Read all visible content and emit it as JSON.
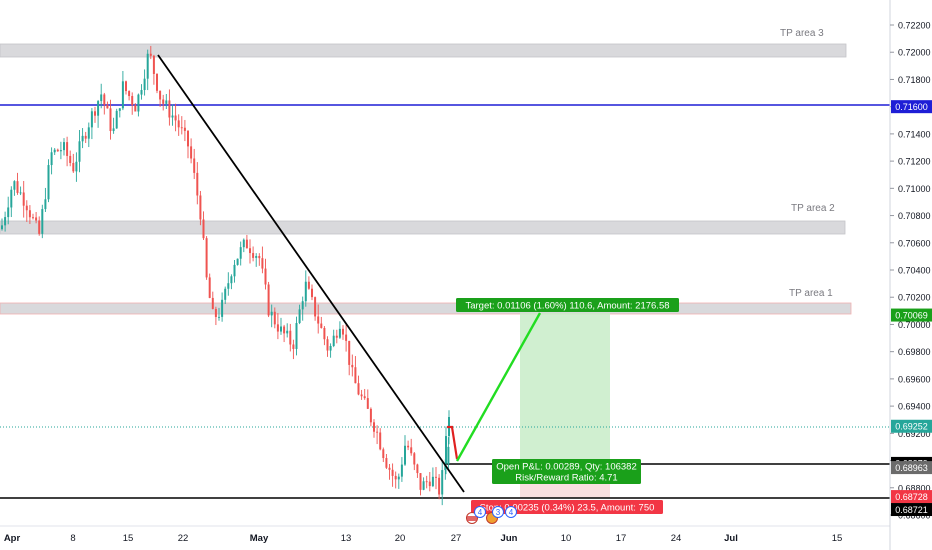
{
  "chart_data": {
    "type": "candlestick",
    "x_tick_labels": [
      "Apr",
      "8",
      "15",
      "22",
      "May",
      "13",
      "20",
      "27",
      "Jun",
      "10",
      "17",
      "24",
      "Jul",
      "15"
    ],
    "y_tick_labels": [
      "0.72200",
      "0.72000",
      "0.71800",
      "0.71600",
      "0.71400",
      "0.71200",
      "0.71000",
      "0.70800",
      "0.70600",
      "0.70400",
      "0.70200",
      "0.70000",
      "0.69800",
      "0.69600",
      "0.69400",
      "0.69200",
      "0.69000",
      "0.68800",
      "0.68600"
    ],
    "ylim": [
      0.6858,
      0.7232
    ],
    "grid": false,
    "price_lines": [
      {
        "value": 0.716,
        "label": "0.71600",
        "color": "#1e1ed6"
      },
      {
        "value": 0.69252,
        "label": "0.69252",
        "color": "#26a69a"
      },
      {
        "value": 0.68979,
        "label": "0.68979",
        "color": "#000000"
      },
      {
        "value": 0.68728,
        "label": "0.68728",
        "color": "#000000"
      }
    ],
    "axis_badges": [
      {
        "value": 0.716,
        "label": "0.71600",
        "color": "#1e1ed6"
      },
      {
        "value": 0.70069,
        "label": "0.70069",
        "color": "#1aa01a"
      },
      {
        "value": 0.69252,
        "label": "0.69252",
        "color": "#26a69a"
      },
      {
        "value": 0.68979,
        "label": "0.68979",
        "color": "#000000"
      },
      {
        "value": 0.68963,
        "label": "0.68963",
        "color": "#6b6b6b"
      },
      {
        "value": 0.68728,
        "label": "0.68728",
        "color": "#f23645"
      },
      {
        "value": 0.68721,
        "label": "0.68721",
        "color": "#000000"
      }
    ],
    "zones": [
      {
        "label": "TP area 3",
        "y_top": 0.7206,
        "y_bottom": 0.71965
      },
      {
        "label": "TP area 2",
        "y_top": 0.70735,
        "y_bottom": 0.70655
      },
      {
        "label": "TP area 1",
        "y_top": 0.7014,
        "y_bottom": 0.7006
      }
    ],
    "trendline": {
      "from": [
        0.155,
        0.7203
      ],
      "to": [
        0.465,
        0.6876
      ]
    },
    "position": {
      "target_label": "Target: 0.01106 (1.60%) 110.6, Amount: 2176.58",
      "pnl_label": "Open P&L: 0.00289, Qty: 106382",
      "rr_label": "Risk/Reward Ratio: 4.71",
      "stop_label": "Stop: 0.00235 (0.34%) 23.5, Amount: 750",
      "entry": 0.68979,
      "target": 0.70069,
      "stop": 0.68728
    },
    "event_badges": [
      "4",
      "3",
      "4"
    ]
  },
  "colors": {
    "up": "#26a69a",
    "down": "#ef5350",
    "target": "#1aa01a",
    "stop": "#f23645",
    "profit_zone": "#c8ecc8",
    "zone": "#d9d9dc"
  }
}
